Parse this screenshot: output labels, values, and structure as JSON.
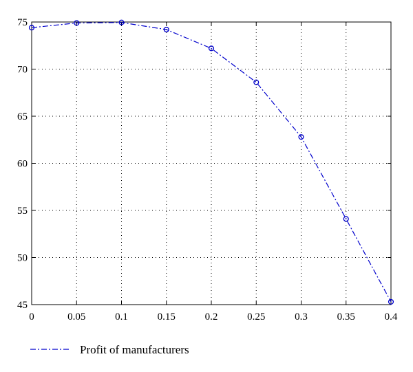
{
  "chart_data": {
    "type": "line",
    "x": [
      0,
      0.05,
      0.1,
      0.15,
      0.2,
      0.25,
      0.3,
      0.35,
      0.4
    ],
    "series": [
      {
        "name": "Profit of manufacturers",
        "values": [
          74.4,
          74.9,
          74.95,
          74.2,
          72.2,
          68.6,
          62.8,
          54.1,
          45.3
        ],
        "color": "#0000cc",
        "line_style": "dash-dot",
        "marker": "circle"
      }
    ],
    "x_ticks": [
      0,
      0.05,
      0.1,
      0.15,
      0.2,
      0.25,
      0.3,
      0.35,
      0.4
    ],
    "x_tick_labels": [
      "0",
      "0.05",
      "0.1",
      "0.15",
      "0.2",
      "0.25",
      "0.3",
      "0.35",
      "0.4"
    ],
    "y_ticks": [
      45,
      50,
      55,
      60,
      65,
      70,
      75
    ],
    "y_tick_labels": [
      "45",
      "50",
      "55",
      "60",
      "65",
      "70",
      "75"
    ],
    "xlim": [
      0,
      0.4
    ],
    "ylim": [
      45,
      75
    ],
    "grid": true,
    "legend_position": "bottom-left",
    "title": "",
    "xlabel": "",
    "ylabel": ""
  }
}
